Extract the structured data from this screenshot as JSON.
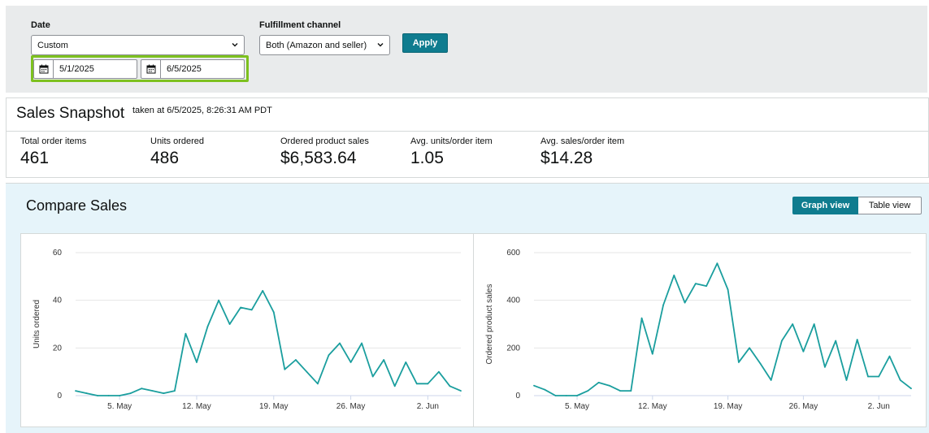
{
  "filters": {
    "date_label": "Date",
    "date_select_value": "Custom",
    "start_date": "5/1/2025",
    "end_date": "6/5/2025",
    "channel_label": "Fulfillment channel",
    "channel_select_value": "Both (Amazon and seller)",
    "apply_label": "Apply"
  },
  "snapshot": {
    "title": "Sales Snapshot",
    "taken_at": "taken at 6/5/2025, 8:26:31 AM PDT",
    "metrics": [
      {
        "label": "Total order items",
        "value": "461"
      },
      {
        "label": "Units ordered",
        "value": "486"
      },
      {
        "label": "Ordered product sales",
        "value": "$6,583.64"
      },
      {
        "label": "Avg. units/order item",
        "value": "1.05"
      },
      {
        "label": "Avg. sales/order item",
        "value": "$14.28"
      }
    ]
  },
  "compare": {
    "title": "Compare Sales",
    "graph_view_label": "Graph view",
    "table_view_label": "Table view"
  },
  "colors": {
    "accent": "#0f7c8f",
    "line": "#1a9e9e",
    "highlight": "#7dc11f"
  },
  "chart_data": [
    {
      "type": "line",
      "ylabel": "Units ordered",
      "xlabel": "",
      "ylim": [
        0,
        60
      ],
      "yticks": [
        "0",
        "20",
        "40",
        "60"
      ],
      "xticks": [
        {
          "label": "5. May",
          "day": 5
        },
        {
          "label": "12. May",
          "day": 12
        },
        {
          "label": "19. May",
          "day": 19
        },
        {
          "label": "26. May",
          "day": 26
        },
        {
          "label": "2. Jun",
          "day": 33
        }
      ],
      "grid": true,
      "series": [
        {
          "values": [
            2,
            1,
            0,
            0,
            0,
            1,
            3,
            2,
            1,
            2,
            26,
            14,
            29,
            40,
            30,
            37,
            36,
            44,
            35,
            11,
            15,
            10,
            5,
            17,
            22,
            14,
            22,
            8,
            15,
            4,
            14,
            5,
            5,
            10,
            4,
            2
          ]
        }
      ]
    },
    {
      "type": "line",
      "ylabel": "Ordered product sales",
      "xlabel": "",
      "ylim": [
        0,
        600
      ],
      "yticks": [
        "0",
        "200",
        "400",
        "600"
      ],
      "xticks": [
        {
          "label": "5. May",
          "day": 5
        },
        {
          "label": "12. May",
          "day": 12
        },
        {
          "label": "19. May",
          "day": 19
        },
        {
          "label": "26. May",
          "day": 26
        },
        {
          "label": "2. Jun",
          "day": 33
        }
      ],
      "grid": true,
      "series": [
        {
          "values": [
            42,
            25,
            0,
            0,
            0,
            20,
            55,
            42,
            20,
            20,
            325,
            175,
            380,
            505,
            390,
            470,
            460,
            555,
            445,
            140,
            200,
            135,
            65,
            230,
            300,
            185,
            300,
            120,
            230,
            65,
            235,
            80,
            80,
            165,
            65,
            30
          ]
        }
      ]
    }
  ]
}
